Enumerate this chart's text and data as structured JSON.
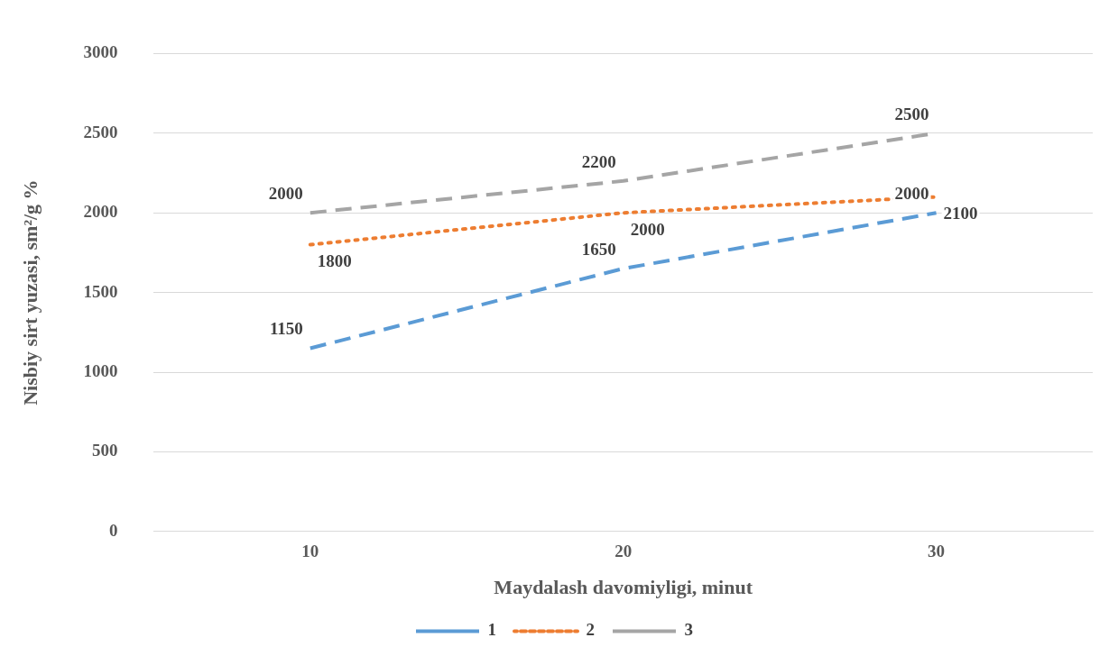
{
  "chart_data": {
    "type": "line",
    "xlabel": "Maydalash davomiyligi, minut",
    "ylabel": "Nisbiy sirt yuzasi, sm²/g %",
    "categories": [
      "10",
      "20",
      "30"
    ],
    "ylim": [
      0,
      3000
    ],
    "yticks": [
      0,
      500,
      1000,
      1500,
      2000,
      2500,
      3000
    ],
    "grid": "y",
    "legend": "bottom",
    "marker": "none",
    "data_labels": true,
    "series": [
      {
        "name": "1",
        "color": "#5b9bd5",
        "values": [
          1150,
          1650,
          2000
        ],
        "line_style": "dashed"
      },
      {
        "name": "2",
        "color": "#ed7d31",
        "values": [
          1800,
          2000,
          2100
        ],
        "line_style": "dotted"
      },
      {
        "name": "3",
        "color": "#a5a5a5",
        "values": [
          2000,
          2200,
          2500
        ],
        "line_style": "dashed"
      }
    ]
  }
}
